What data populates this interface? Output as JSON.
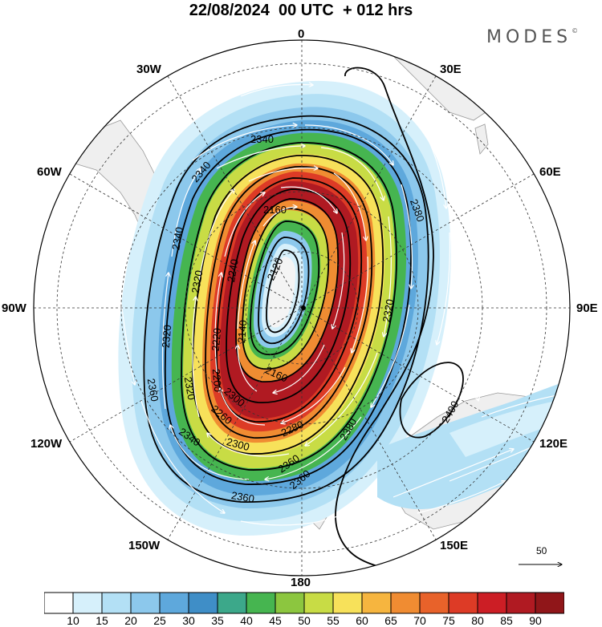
{
  "title": "22/08/2024  00 UTC  + 012 hrs",
  "logo": "MODES",
  "logo_mark": "©",
  "projection": "south-polar-stereographic",
  "longitude_labels": [
    {
      "name": "0",
      "id": "lon-0"
    },
    {
      "name": "30W",
      "id": "lon-30w"
    },
    {
      "name": "30E",
      "id": "lon-30e"
    },
    {
      "name": "60W",
      "id": "lon-60w"
    },
    {
      "name": "60E",
      "id": "lon-60e"
    },
    {
      "name": "90W",
      "id": "lon-90w"
    },
    {
      "name": "90E",
      "id": "lon-90e"
    },
    {
      "name": "120W",
      "id": "lon-120w"
    },
    {
      "name": "120E",
      "id": "lon-120e"
    },
    {
      "name": "150W",
      "id": "lon-150w"
    },
    {
      "name": "150E",
      "id": "lon-150e"
    },
    {
      "name": "180",
      "id": "lon-180"
    }
  ],
  "contour_labels": [
    "2340",
    "2340",
    "2340",
    "2380",
    "2160",
    "2120",
    "2320",
    "2320",
    "2220",
    "2240",
    "2140",
    "2320",
    "2360",
    "2320",
    "2200",
    "2160",
    "2280",
    "2300",
    "2340",
    "2300",
    "2360",
    "2360",
    "2360",
    "2260",
    "2380",
    "2400"
  ],
  "wind_reference": {
    "value": "50"
  },
  "colorbar": {
    "levels": [
      "10",
      "15",
      "20",
      "25",
      "30",
      "35",
      "40",
      "45",
      "50",
      "55",
      "60",
      "65",
      "70",
      "75",
      "80",
      "85",
      "90"
    ],
    "colors": [
      "#ffffff",
      "#d6f0fb",
      "#b3e0f5",
      "#8cc8ec",
      "#5ea8dc",
      "#3f8ec7",
      "#3ca88a",
      "#46b550",
      "#8cc63f",
      "#c8dc45",
      "#f7e15a",
      "#f6b53f",
      "#f08c32",
      "#e8622a",
      "#dd3b26",
      "#cc1e25",
      "#b01a22",
      "#901619"
    ]
  }
}
